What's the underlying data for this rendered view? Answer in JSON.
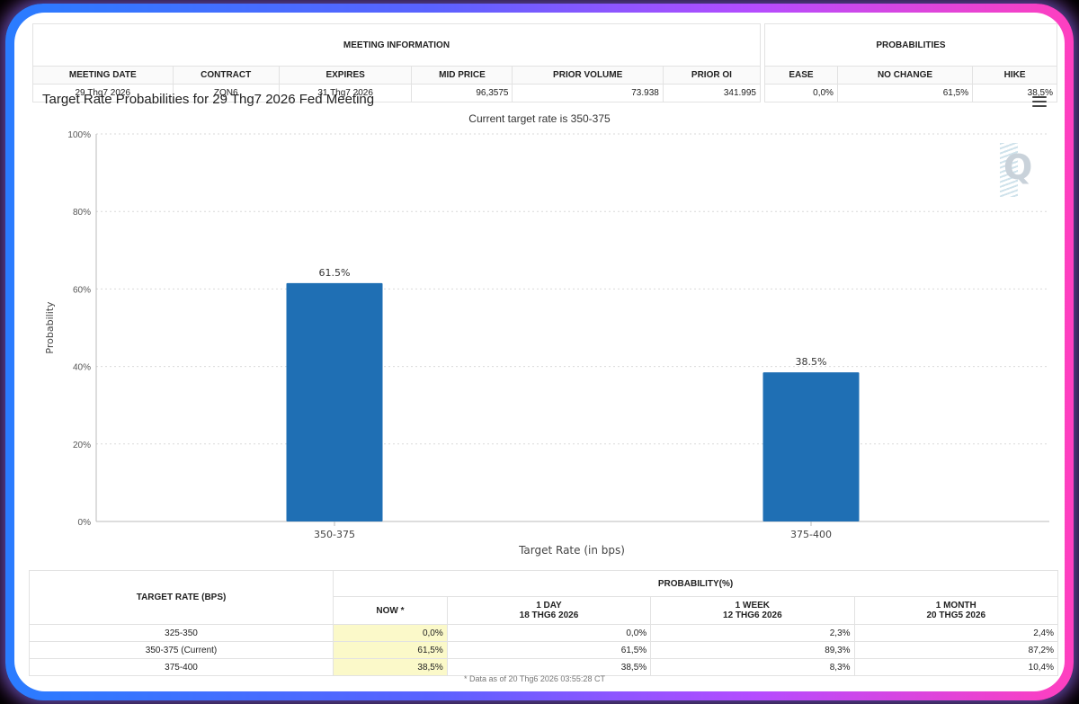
{
  "meeting_info": {
    "group_title": "MEETING INFORMATION",
    "headers": [
      "MEETING DATE",
      "CONTRACT",
      "EXPIRES",
      "MID PRICE",
      "PRIOR VOLUME",
      "PRIOR OI"
    ],
    "values": [
      "29 Thg7 2026",
      "ZQN6",
      "31 Thg7 2026",
      "96,3575",
      "73.938",
      "341.995"
    ]
  },
  "probabilities": {
    "group_title": "PROBABILITIES",
    "headers": [
      "EASE",
      "NO CHANGE",
      "HIKE"
    ],
    "values": [
      "0,0%",
      "61,5%",
      "38,5%"
    ]
  },
  "chart_header": {
    "title": "Target Rate Probabilities for 29 Thg7 2026 Fed Meeting",
    "subtitle": "Current target rate is 350-375",
    "menu_icon": "hamburger-menu-icon",
    "watermark": "Q"
  },
  "chart_data": {
    "type": "bar",
    "categories": [
      "350-375",
      "375-400"
    ],
    "values": [
      61.5,
      38.5
    ],
    "data_labels": [
      "61.5%",
      "38.5%"
    ],
    "xlabel": "Target Rate (in bps)",
    "ylabel": "Probability",
    "ylim": [
      0,
      100
    ],
    "yticks": [
      "0%",
      "20%",
      "40%",
      "60%",
      "80%",
      "100%"
    ],
    "grid": true,
    "bar_color": "#1f6fb4"
  },
  "bottom_table": {
    "row_header": "TARGET RATE (BPS)",
    "group_title": "PROBABILITY(%)",
    "col_headers": [
      {
        "line1": "NOW *",
        "line2": ""
      },
      {
        "line1": "1 DAY",
        "line2": "18 THG6 2026"
      },
      {
        "line1": "1 WEEK",
        "line2": "12 THG6 2026"
      },
      {
        "line1": "1 MONTH",
        "line2": "20 THG5 2026"
      }
    ],
    "rows": [
      {
        "rate": "325-350",
        "now": "0,0%",
        "day": "0,0%",
        "week": "2,3%",
        "month": "2,4%"
      },
      {
        "rate": "350-375 (Current)",
        "now": "61,5%",
        "day": "61,5%",
        "week": "89,3%",
        "month": "87,2%"
      },
      {
        "rate": "375-400",
        "now": "38,5%",
        "day": "38,5%",
        "week": "8,3%",
        "month": "10,4%"
      }
    ],
    "footnote": "* Data as of 20 Thg6 2026 03:55:28 CT"
  }
}
